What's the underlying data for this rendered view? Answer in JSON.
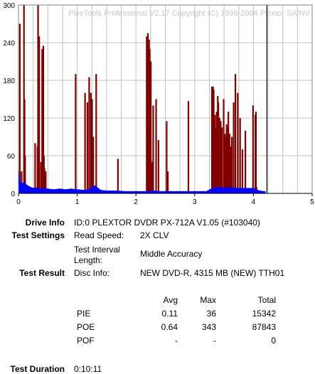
{
  "watermark": "PlexTools Professional V2.17 Copyright (C) 1999-2004 Plextor SA/NV",
  "chart_data": {
    "type": "bar",
    "title": "",
    "xlabel": "",
    "ylabel": "",
    "xlim": [
      0,
      5
    ],
    "ylim": [
      0,
      300
    ],
    "x_ticks": [
      "0",
      "1",
      "2",
      "3",
      "4",
      "5"
    ],
    "y_ticks": [
      "0",
      "60",
      "120",
      "180",
      "240",
      "300"
    ],
    "grid": true,
    "end_marker_x": 4.23,
    "colors": {
      "poe": "#800000",
      "pie": "#0000ff",
      "grid": "#c0c0c0",
      "marker": "#000000"
    },
    "series": [
      {
        "name": "POE",
        "x": [
          0.01,
          0.04,
          0.08,
          0.09,
          0.1,
          0.27,
          0.31,
          0.32,
          0.34,
          0.37,
          0.39,
          0.41,
          0.42,
          0.43,
          0.45,
          0.96,
          1.12,
          1.16,
          1.19,
          1.22,
          1.24,
          1.26,
          1.31,
          1.68,
          2.17,
          2.19,
          2.21,
          2.22,
          2.24,
          2.26,
          2.28,
          2.33,
          2.37,
          2.51,
          2.53,
          2.88,
          3.28,
          3.29,
          3.3,
          3.31,
          3.32,
          3.33,
          3.34,
          3.35,
          3.36,
          3.37,
          3.38,
          3.39,
          3.41,
          3.43,
          3.45,
          3.48,
          3.5,
          3.52,
          3.53,
          3.55,
          3.56,
          3.58,
          3.6,
          3.62,
          3.65,
          3.68,
          3.72,
          3.76,
          3.8,
          3.85,
          3.98,
          4.02,
          4.03,
          4.04
        ],
        "values": [
          270,
          35,
          300,
          150,
          60,
          80,
          75,
          300,
          250,
          50,
          230,
          235,
          60,
          40,
          35,
          190,
          160,
          145,
          185,
          160,
          150,
          90,
          190,
          55,
          250,
          255,
          245,
          230,
          210,
          50,
          140,
          150,
          85,
          115,
          35,
          147,
          170,
          165,
          170,
          165,
          120,
          125,
          105,
          95,
          130,
          130,
          155,
          145,
          120,
          115,
          105,
          150,
          95,
          90,
          110,
          105,
          130,
          95,
          75,
          90,
          145,
          190,
          160,
          120,
          70,
          100,
          140,
          125,
          130,
          10
        ]
      },
      {
        "name": "PIE",
        "x": [
          0.0,
          0.03,
          0.06,
          0.1,
          0.13,
          0.16,
          0.2,
          0.25,
          0.3,
          0.35,
          0.4,
          0.5,
          0.6,
          0.7,
          0.8,
          0.9,
          1.0,
          1.1,
          1.2,
          1.3,
          1.4,
          1.5,
          1.6,
          1.7,
          1.8,
          1.9,
          2.0,
          2.1,
          2.2,
          2.3,
          2.4,
          2.5,
          2.6,
          2.7,
          2.8,
          2.9,
          3.0,
          3.1,
          3.2,
          3.3,
          3.4,
          3.5,
          3.6,
          3.7,
          3.8,
          3.9,
          4.0,
          4.1,
          4.2
        ],
        "values": [
          36,
          18,
          15,
          18,
          14,
          12,
          10,
          8,
          9,
          7,
          8,
          7,
          6,
          7,
          6,
          7,
          6,
          5,
          6,
          12,
          5,
          4,
          4,
          4,
          3,
          3,
          3,
          3,
          3,
          4,
          3,
          3,
          3,
          3,
          3,
          3,
          3,
          3,
          3,
          8,
          10,
          8,
          10,
          8,
          8,
          8,
          8,
          4,
          3
        ]
      }
    ]
  },
  "info": {
    "drive_info_label": "Drive Info",
    "drive_info_value": "ID:0 PLEXTOR DVDR PX-712A V1.05 (#103040)",
    "test_settings_label": "Test Settings",
    "read_speed_label": "Read Speed:",
    "read_speed_value": "2X CLV",
    "interval_label_1": "Test Interval",
    "interval_label_2": "Length:",
    "interval_value": "Middle Accuracy",
    "test_result_label": "Test Result",
    "disc_info_label": "Disc Info:",
    "disc_info_value": "NEW DVD-R, 4315 MB (NEW) TTH01",
    "col_avg": "Avg",
    "col_max": "Max",
    "col_total": "Total",
    "rows": [
      {
        "name": "PIE",
        "avg": "0.11",
        "max": "36",
        "total": "15342"
      },
      {
        "name": "POE",
        "avg": "0.64",
        "max": "343",
        "total": "87843"
      },
      {
        "name": "POF",
        "avg": "-",
        "max": "-",
        "total": "0"
      }
    ],
    "duration_label": "Test Duration",
    "duration_value": "0:10:11"
  }
}
